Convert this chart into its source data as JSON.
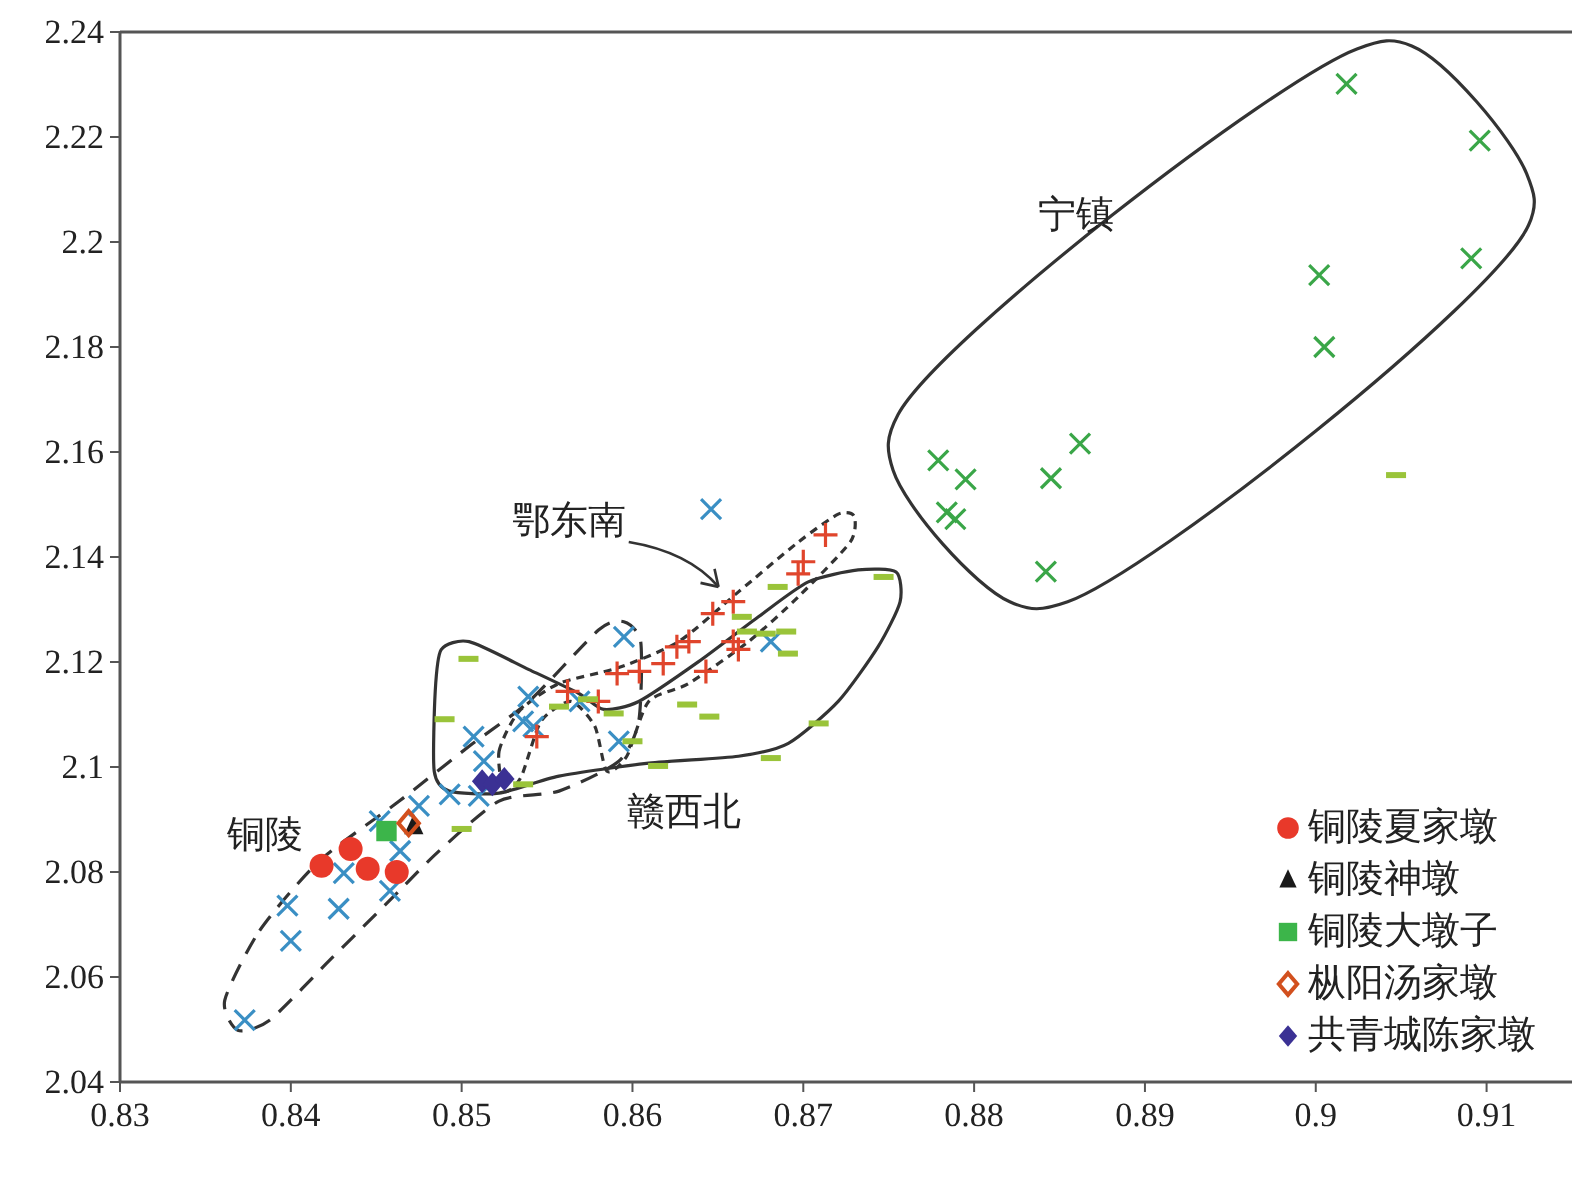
{
  "chart_data": {
    "type": "scatter",
    "xlim": [
      0.83,
      0.915
    ],
    "ylim": [
      2.04,
      2.24
    ],
    "xticks": [
      0.83,
      0.84,
      0.85,
      0.86,
      0.87,
      0.88,
      0.89,
      0.9,
      0.91
    ],
    "yticks": [
      2.04,
      2.06,
      2.08,
      2.1,
      2.12,
      2.14,
      2.16,
      2.18,
      2.2,
      2.22,
      2.24
    ],
    "grid": false,
    "legend": "bottom right",
    "annotations": [
      "铜陵",
      "鄂东南",
      "赣西北",
      "宁镇"
    ],
    "series": [
      {
        "color": "#3a8fc4",
        "marker": "cross",
        "x": [
          0.8373,
          0.8398,
          0.84,
          0.8428,
          0.8431,
          0.8458,
          0.8452,
          0.8464,
          0.8475,
          0.8493,
          0.8507,
          0.8513,
          0.851,
          0.8539,
          0.8536,
          0.8542,
          0.8569,
          0.8595,
          0.8592,
          0.8646,
          0.8681
        ],
        "values": [
          2.0518,
          2.0736,
          2.0669,
          2.073,
          2.0798,
          2.0764,
          2.0897,
          2.084,
          2.0926,
          2.0948,
          2.1058,
          2.1011,
          2.0945,
          2.1134,
          2.1087,
          2.1077,
          2.1125,
          2.1248,
          2.1049,
          2.1491,
          2.1239
        ]
      },
      {
        "color": "#e0452c",
        "marker": "plus",
        "x": [
          0.8544,
          0.8562,
          0.858,
          0.8591,
          0.8604,
          0.8618,
          0.8626,
          0.8633,
          0.8643,
          0.8647,
          0.8659,
          0.8659,
          0.8662,
          0.8697,
          0.87,
          0.8713
        ],
        "values": [
          2.1058,
          2.1144,
          2.1125,
          2.1178,
          2.1182,
          2.1197,
          2.1229,
          2.1239,
          2.1182,
          2.1292,
          2.1315,
          2.1239,
          2.1224,
          2.1368,
          2.1391,
          2.1442
        ]
      },
      {
        "color": "#9ac43a",
        "x": [
          0.8504,
          0.849,
          0.85,
          0.8536,
          0.8557,
          0.8574,
          0.8589,
          0.86,
          0.8615,
          0.8632,
          0.8645,
          0.8664,
          0.8667,
          0.8678,
          0.8685,
          0.869,
          0.8691,
          0.8709,
          0.8681,
          0.8747,
          0.9047
        ],
        "values": [
          2.1206,
          2.1091,
          2.0882,
          2.0967,
          2.1115,
          2.1129,
          2.1102,
          2.1049,
          2.1002,
          2.1119,
          2.1096,
          2.1286,
          2.1258,
          2.1254,
          2.1343,
          2.1258,
          2.1216,
          2.1083,
          2.1017,
          2.1362,
          2.1556
        ]
      },
      {
        "color": "#3aa648",
        "marker": "cross",
        "x": [
          0.8779,
          0.8784,
          0.8789,
          0.8795,
          0.8845,
          0.8842,
          0.8862,
          0.9002,
          0.9005,
          0.9018,
          0.9091,
          0.9096
        ],
        "values": [
          2.1584,
          2.1485,
          2.1472,
          2.1548,
          2.155,
          2.1372,
          2.1616,
          2.1937,
          2.18,
          2.2301,
          2.1969,
          2.2193
        ]
      },
      {
        "name": "铜陵夏家墩",
        "color": "#e8392a",
        "marker": "circle",
        "x": [
          0.8418,
          0.8435,
          0.8445,
          0.8462
        ],
        "values": [
          2.0812,
          2.0844,
          2.0806,
          2.08
        ]
      },
      {
        "name": "铜陵神墩",
        "color": "#1a1a1a",
        "marker": "triangle",
        "x": [
          0.8472
        ],
        "values": [
          2.0888
        ]
      },
      {
        "name": "铜陵大墩子",
        "color": "#3cb54a",
        "marker": "square",
        "x": [
          0.8456
        ],
        "values": [
          2.0878
        ]
      },
      {
        "name": "枞阳汤家墩",
        "color": "#d2501e",
        "marker": "diamond-open",
        "x": [
          0.8469
        ],
        "values": [
          2.0893
        ]
      },
      {
        "name": "共青城陈家墩",
        "color": "#3b3194",
        "marker": "diamond",
        "x": [
          0.8512,
          0.8518,
          0.8525
        ],
        "values": [
          2.0973,
          2.0967,
          2.0977
        ]
      }
    ]
  }
}
